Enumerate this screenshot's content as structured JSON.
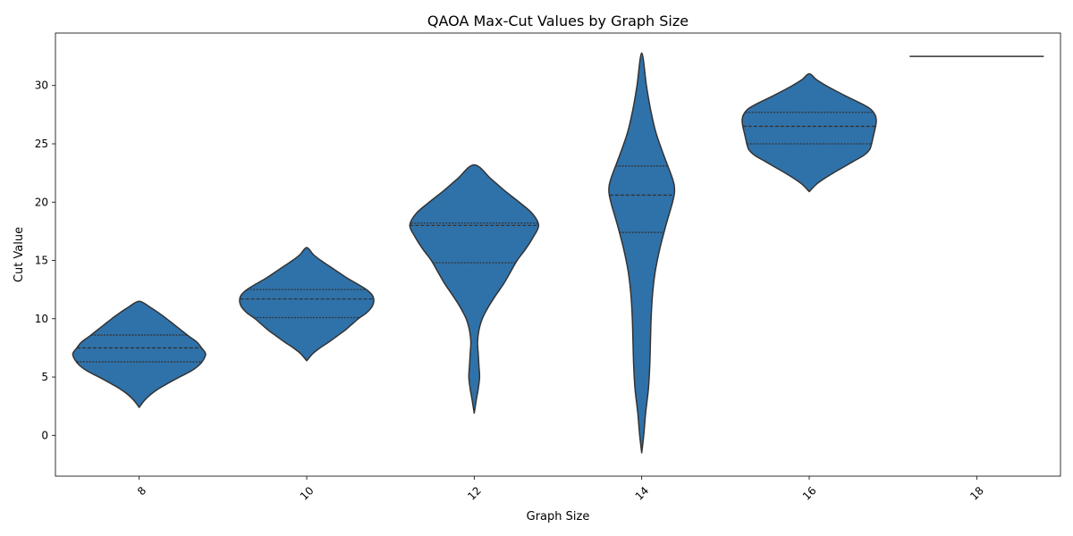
{
  "chart_data": {
    "type": "violin",
    "title": "QAOA Max-Cut Values by Graph Size",
    "xlabel": "Graph Size",
    "ylabel": "Cut Value",
    "categories": [
      "8",
      "10",
      "12",
      "14",
      "16",
      "18"
    ],
    "ylim": [
      -3.5,
      34.5
    ],
    "yticks": [
      0,
      5,
      10,
      15,
      20,
      25,
      30
    ],
    "grid": false,
    "fill_color": "#2f72aa",
    "edge_color": "#333333",
    "violins": [
      {
        "category": "8",
        "quartiles": [
          6.3,
          7.5,
          8.6
        ],
        "profile": [
          [
            2.4,
            0.0
          ],
          [
            3.0,
            0.08
          ],
          [
            3.5,
            0.17
          ],
          [
            4.0,
            0.29
          ],
          [
            4.5,
            0.44
          ],
          [
            5.0,
            0.6
          ],
          [
            5.5,
            0.77
          ],
          [
            6.0,
            0.89
          ],
          [
            6.5,
            0.96
          ],
          [
            7.0,
            0.99
          ],
          [
            7.5,
            0.93
          ],
          [
            8.0,
            0.86
          ],
          [
            8.5,
            0.74
          ],
          [
            9.0,
            0.63
          ],
          [
            9.5,
            0.52
          ],
          [
            10.0,
            0.41
          ],
          [
            10.5,
            0.29
          ],
          [
            11.0,
            0.16
          ],
          [
            11.5,
            0.0
          ]
        ]
      },
      {
        "category": "10",
        "quartiles": [
          10.1,
          11.7,
          12.5
        ],
        "profile": [
          [
            6.4,
            0.0
          ],
          [
            7.0,
            0.09
          ],
          [
            7.5,
            0.2
          ],
          [
            8.0,
            0.33
          ],
          [
            8.5,
            0.45
          ],
          [
            9.0,
            0.57
          ],
          [
            9.5,
            0.67
          ],
          [
            10.0,
            0.77
          ],
          [
            10.5,
            0.89
          ],
          [
            11.0,
            0.97
          ],
          [
            11.5,
            1.0
          ],
          [
            12.0,
            0.98
          ],
          [
            12.5,
            0.89
          ],
          [
            13.0,
            0.75
          ],
          [
            13.5,
            0.6
          ],
          [
            14.0,
            0.47
          ],
          [
            14.5,
            0.34
          ],
          [
            15.0,
            0.21
          ],
          [
            15.5,
            0.1
          ],
          [
            16.1,
            0.0
          ]
        ]
      },
      {
        "category": "12",
        "quartiles": [
          14.8,
          18.0,
          18.2
        ],
        "profile": [
          [
            1.9,
            0.0
          ],
          [
            3.0,
            0.03
          ],
          [
            4.0,
            0.06
          ],
          [
            5.0,
            0.08
          ],
          [
            6.0,
            0.07
          ],
          [
            7.0,
            0.06
          ],
          [
            8.0,
            0.05
          ],
          [
            9.0,
            0.07
          ],
          [
            10.0,
            0.12
          ],
          [
            11.0,
            0.21
          ],
          [
            12.0,
            0.32
          ],
          [
            13.0,
            0.44
          ],
          [
            14.0,
            0.54
          ],
          [
            15.0,
            0.64
          ],
          [
            16.0,
            0.77
          ],
          [
            17.0,
            0.88
          ],
          [
            18.0,
            0.96
          ],
          [
            19.0,
            0.87
          ],
          [
            20.0,
            0.67
          ],
          [
            21.0,
            0.45
          ],
          [
            22.0,
            0.25
          ],
          [
            23.2,
            0.0
          ]
        ]
      },
      {
        "category": "14",
        "quartiles": [
          17.4,
          20.6,
          23.1
        ],
        "profile": [
          [
            -1.5,
            0.0
          ],
          [
            0.0,
            0.03
          ],
          [
            2.0,
            0.06
          ],
          [
            4.0,
            0.1
          ],
          [
            6.0,
            0.12
          ],
          [
            8.0,
            0.13
          ],
          [
            10.0,
            0.14
          ],
          [
            12.0,
            0.16
          ],
          [
            14.0,
            0.2
          ],
          [
            16.0,
            0.27
          ],
          [
            18.0,
            0.36
          ],
          [
            20.0,
            0.46
          ],
          [
            21.0,
            0.49
          ],
          [
            22.0,
            0.46
          ],
          [
            24.0,
            0.33
          ],
          [
            26.0,
            0.21
          ],
          [
            28.0,
            0.13
          ],
          [
            30.0,
            0.07
          ],
          [
            32.8,
            0.0
          ]
        ]
      },
      {
        "category": "16",
        "quartiles": [
          25.0,
          26.5,
          27.7
        ],
        "profile": [
          [
            20.9,
            0.0
          ],
          [
            21.5,
            0.1
          ],
          [
            22.0,
            0.22
          ],
          [
            22.5,
            0.36
          ],
          [
            23.0,
            0.51
          ],
          [
            23.5,
            0.66
          ],
          [
            24.0,
            0.81
          ],
          [
            24.5,
            0.9
          ],
          [
            25.0,
            0.93
          ],
          [
            25.5,
            0.95
          ],
          [
            26.0,
            0.97
          ],
          [
            26.5,
            0.99
          ],
          [
            27.0,
            1.0
          ],
          [
            27.5,
            0.98
          ],
          [
            28.0,
            0.91
          ],
          [
            28.5,
            0.76
          ],
          [
            29.0,
            0.58
          ],
          [
            29.5,
            0.41
          ],
          [
            30.0,
            0.25
          ],
          [
            30.5,
            0.11
          ],
          [
            31.0,
            0.0
          ]
        ]
      },
      {
        "category": "18",
        "quartiles": [],
        "single_value": 32.5,
        "profile": []
      }
    ]
  }
}
